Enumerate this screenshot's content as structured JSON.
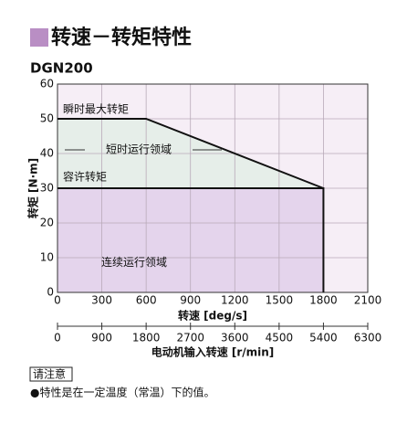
{
  "chart_data": {
    "type": "line",
    "title": "转速－转矩特性",
    "subtitle": "DGN200",
    "x_label": "转速 [deg/s]",
    "y_label": "转矩 [N·m]",
    "xlim": [
      0,
      2100
    ],
    "xticks": [
      0,
      300,
      600,
      900,
      1200,
      1500,
      1800,
      2100
    ],
    "ylim": [
      0,
      60
    ],
    "yticks": [
      0,
      10,
      20,
      30,
      40,
      50,
      60
    ],
    "x2_label": "电动机输入转速 [r/min]",
    "x2lim": [
      0,
      6300
    ],
    "x2ticks": [
      0,
      900,
      1800,
      2700,
      3600,
      4500,
      5400,
      6300
    ],
    "grid": true,
    "plot_background": "#f6eef6",
    "grid_color": "#b9aab9",
    "series": [
      {
        "name": "瞬时最大转矩",
        "color": "#111111",
        "x": [
          0,
          600,
          1800
        ],
        "values": [
          50,
          50,
          30
        ]
      },
      {
        "name": "容许转矩",
        "color": "#111111",
        "x": [
          0,
          1800,
          1800
        ],
        "values": [
          30,
          30,
          0
        ]
      }
    ],
    "regions": [
      {
        "label": "短时运行领域",
        "color": "#e6eee9"
      },
      {
        "label": "连续运行领域",
        "color": "#e4d4ec"
      }
    ]
  },
  "note": {
    "label": "请注意",
    "text": "●特性是在一定温度（常温）下的值。"
  }
}
